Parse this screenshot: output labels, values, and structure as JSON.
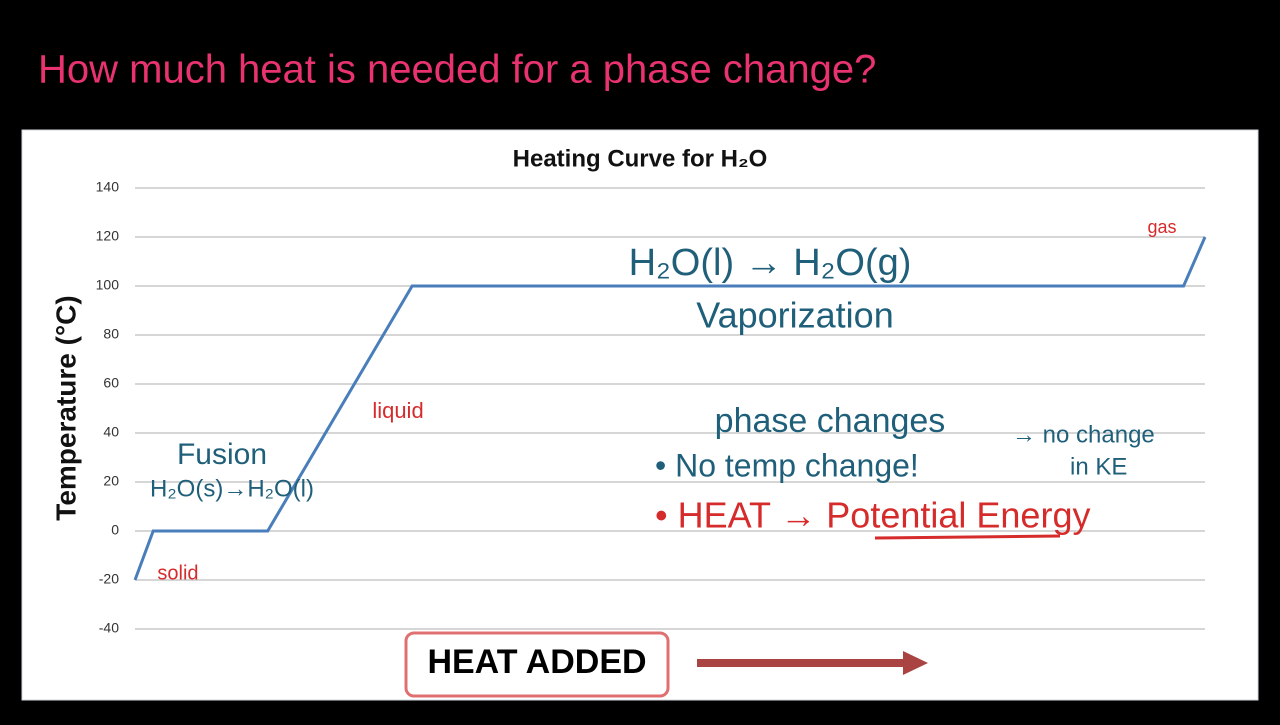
{
  "slide_title": "How much heat is needed for a phase change?",
  "chart_data": {
    "type": "line",
    "title": "Heating Curve for H₂O",
    "y_label": "Temperature (°C)",
    "x_label": "HEAT ADDED",
    "x": [
      0,
      1.7,
      12.4,
      25.9,
      98,
      100
    ],
    "xlim": [
      0,
      100
    ],
    "values": [
      -20,
      0,
      0,
      100,
      100,
      120
    ],
    "color": "#4a7ebb",
    "ylim": [
      -40,
      140
    ],
    "yticks": [
      -40,
      -20,
      0,
      20,
      40,
      60,
      80,
      100,
      120,
      140
    ],
    "grid": true,
    "annotations": [
      "H₂O(l) → H₂O(g)",
      "Vaporization",
      "Fusion",
      "H₂O(s)→H₂O(l)",
      "solid",
      "liquid",
      "gas",
      "phase changes",
      "• No temp change!",
      "→ no change",
      "in KE",
      "• HEAT → Potential Energy"
    ]
  }
}
